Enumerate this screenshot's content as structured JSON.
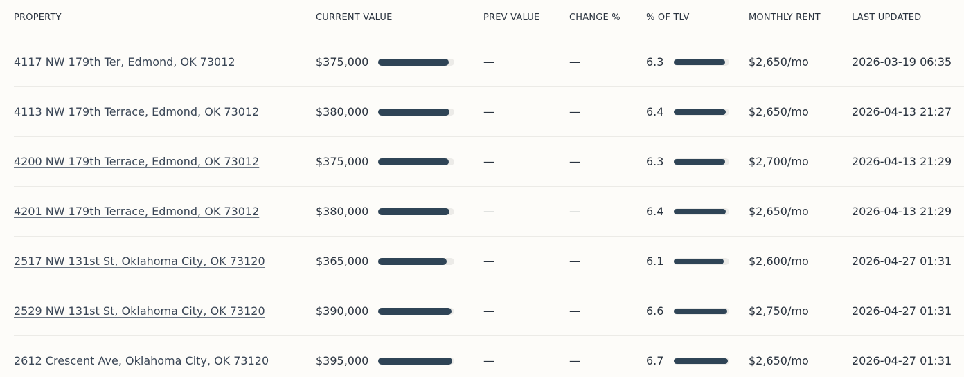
{
  "headers": {
    "property": "PROPERTY",
    "current_value": "CURRENT VALUE",
    "prev_value": "PREV VALUE",
    "change_pct": "CHANGE %",
    "pct_tlv": "% OF TLV",
    "monthly_rent": "MONTHLY RENT",
    "last_updated": "LAST UPDATED"
  },
  "colors": {
    "bar": "#2f4456",
    "track": "#ecebe8",
    "background": "#fdfcf9"
  },
  "rows": [
    {
      "property": "4117 NW 179th Ter, Edmond, OK 73012",
      "current_value": "$375,000",
      "value_fraction": 0.93,
      "prev_value": "—",
      "change_pct": "—",
      "pct_tlv": "6.3",
      "tlv_fraction": 0.93,
      "monthly_rent": "$2,650/mo",
      "last_updated": "2026-03-19 06:35"
    },
    {
      "property": "4113 NW 179th Terrace, Edmond, OK 73012",
      "current_value": "$380,000",
      "value_fraction": 0.94,
      "prev_value": "—",
      "change_pct": "—",
      "pct_tlv": "6.4",
      "tlv_fraction": 0.94,
      "monthly_rent": "$2,650/mo",
      "last_updated": "2026-04-13 21:27"
    },
    {
      "property": "4200 NW 179th Terrace, Edmond, OK 73012",
      "current_value": "$375,000",
      "value_fraction": 0.93,
      "prev_value": "—",
      "change_pct": "—",
      "pct_tlv": "6.3",
      "tlv_fraction": 0.93,
      "monthly_rent": "$2,700/mo",
      "last_updated": "2026-04-13 21:29"
    },
    {
      "property": "4201 NW 179th Terrace, Edmond, OK 73012",
      "current_value": "$380,000",
      "value_fraction": 0.94,
      "prev_value": "—",
      "change_pct": "—",
      "pct_tlv": "6.4",
      "tlv_fraction": 0.94,
      "monthly_rent": "$2,650/mo",
      "last_updated": "2026-04-13 21:29"
    },
    {
      "property": "2517 NW 131st St, Oklahoma City, OK 73120",
      "current_value": "$365,000",
      "value_fraction": 0.9,
      "prev_value": "—",
      "change_pct": "—",
      "pct_tlv": "6.1",
      "tlv_fraction": 0.9,
      "monthly_rent": "$2,600/mo",
      "last_updated": "2026-04-27 01:31"
    },
    {
      "property": "2529 NW 131st St, Oklahoma City, OK 73120",
      "current_value": "$390,000",
      "value_fraction": 0.96,
      "prev_value": "—",
      "change_pct": "—",
      "pct_tlv": "6.6",
      "tlv_fraction": 0.96,
      "monthly_rent": "$2,750/mo",
      "last_updated": "2026-04-27 01:31"
    },
    {
      "property": "2612 Crescent Ave, Oklahoma City, OK 73120",
      "current_value": "$395,000",
      "value_fraction": 0.97,
      "prev_value": "—",
      "change_pct": "—",
      "pct_tlv": "6.7",
      "tlv_fraction": 0.98,
      "monthly_rent": "$2,650/mo",
      "last_updated": "2026-04-27 01:31"
    }
  ]
}
